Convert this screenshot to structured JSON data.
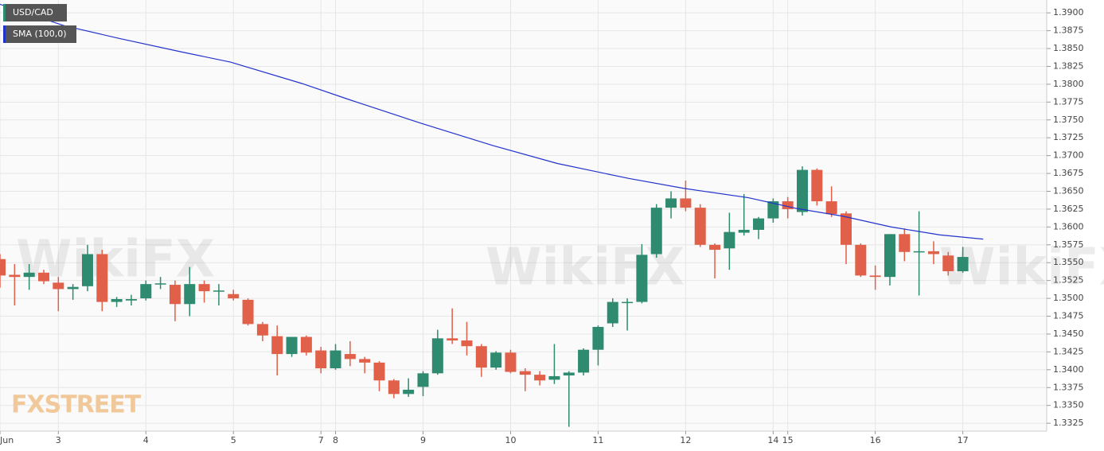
{
  "chart_data": {
    "type": "candlestick",
    "name": "USD/CAD",
    "up_color": "#2e8b6f",
    "down_color": "#e0604a",
    "grid": true,
    "watermark": "WikiFX",
    "logo": "FXSTREET",
    "xlim": [
      0,
      71.75
    ],
    "ylim": [
      1.3314,
      1.3918
    ],
    "xticks": [
      {
        "value": 0,
        "label": "Jun"
      },
      {
        "value": 4,
        "label": "3"
      },
      {
        "value": 10,
        "label": "4"
      },
      {
        "value": 16,
        "label": "5"
      },
      {
        "value": 22,
        "label": "7"
      },
      {
        "value": 23,
        "label": "8"
      },
      {
        "value": 29,
        "label": "9"
      },
      {
        "value": 35,
        "label": "10"
      },
      {
        "value": 41,
        "label": "11"
      },
      {
        "value": 47,
        "label": "12"
      },
      {
        "value": 53,
        "label": "14"
      },
      {
        "value": 54,
        "label": "15"
      },
      {
        "value": 60,
        "label": "16"
      },
      {
        "value": 66,
        "label": "17"
      }
    ],
    "yticks": [
      {
        "value": 1.3325,
        "label": "1.3325"
      },
      {
        "value": 1.335,
        "label": "1.3350"
      },
      {
        "value": 1.3375,
        "label": "1.3375"
      },
      {
        "value": 1.34,
        "label": "1.3400"
      },
      {
        "value": 1.3425,
        "label": "1.3425"
      },
      {
        "value": 1.345,
        "label": "1.3450"
      },
      {
        "value": 1.3475,
        "label": "1.3475"
      },
      {
        "value": 1.35,
        "label": "1.3500"
      },
      {
        "value": 1.3525,
        "label": "1.3525"
      },
      {
        "value": 1.355,
        "label": "1.3550"
      },
      {
        "value": 1.3575,
        "label": "1.3575"
      },
      {
        "value": 1.36,
        "label": "1.3600"
      },
      {
        "value": 1.3625,
        "label": "1.3625"
      },
      {
        "value": 1.365,
        "label": "1.3650"
      },
      {
        "value": 1.3675,
        "label": "1.3675"
      },
      {
        "value": 1.37,
        "label": "1.3700"
      },
      {
        "value": 1.3725,
        "label": "1.3725"
      },
      {
        "value": 1.375,
        "label": "1.3750"
      },
      {
        "value": 1.3775,
        "label": "1.3775"
      },
      {
        "value": 1.38,
        "label": "1.3800"
      },
      {
        "value": 1.3825,
        "label": "1.3825"
      },
      {
        "value": 1.385,
        "label": "1.3850"
      },
      {
        "value": 1.3875,
        "label": "1.3875"
      },
      {
        "value": 1.39,
        "label": "1.3900"
      }
    ],
    "x": [
      0,
      1,
      2,
      3,
      4,
      5,
      6,
      7,
      8,
      9,
      10,
      11,
      12,
      13,
      14,
      15,
      16,
      17,
      18,
      19,
      20,
      21,
      22,
      23,
      24,
      25,
      26,
      27,
      28,
      29,
      30,
      31,
      32,
      33,
      34,
      35,
      36,
      37,
      38,
      39,
      40,
      41,
      42,
      43,
      44,
      45,
      46,
      47,
      48,
      49,
      50,
      51,
      52,
      53,
      54,
      55,
      56,
      57,
      58,
      59,
      60,
      61,
      62,
      63,
      64,
      65,
      66
    ],
    "open": [
      1.3555,
      1.3533,
      1.353,
      1.3536,
      1.3522,
      1.3513,
      1.3517,
      1.3562,
      1.3495,
      1.3497,
      1.35,
      1.352,
      1.3519,
      1.3492,
      1.352,
      1.351,
      1.3506,
      1.3498,
      1.3464,
      1.3447,
      1.3422,
      1.3446,
      1.3427,
      1.3402,
      1.3422,
      1.3415,
      1.341,
      1.3385,
      1.3366,
      1.3376,
      1.3395,
      1.3444,
      1.3441,
      1.3433,
      1.3403,
      1.3424,
      1.3398,
      1.3393,
      1.3386,
      1.3392,
      1.3396,
      1.3428,
      1.3465,
      1.3494,
      1.3495,
      1.3562,
      1.3627,
      1.364,
      1.3627,
      1.3575,
      1.357,
      1.3592,
      1.3596,
      1.3612,
      1.3636,
      1.3621,
      1.368,
      1.3636,
      1.3619,
      1.3575,
      1.3532,
      1.353,
      1.359,
      1.3565,
      1.3566,
      1.356,
      1.3538
    ],
    "high": [
      1.3562,
      1.3548,
      1.3548,
      1.354,
      1.353,
      1.352,
      1.3575,
      1.3568,
      1.3502,
      1.3505,
      1.3525,
      1.353,
      1.3525,
      1.3544,
      1.3525,
      1.352,
      1.3512,
      1.35,
      1.3467,
      1.3462,
      1.3446,
      1.3448,
      1.3432,
      1.3436,
      1.344,
      1.3418,
      1.3412,
      1.3387,
      1.3388,
      1.3398,
      1.3456,
      1.3486,
      1.3467,
      1.3436,
      1.3426,
      1.3428,
      1.3402,
      1.3398,
      1.3436,
      1.3398,
      1.343,
      1.3462,
      1.35,
      1.35,
      1.3576,
      1.3632,
      1.365,
      1.3665,
      1.3632,
      1.3577,
      1.362,
      1.3646,
      1.3614,
      1.364,
      1.3642,
      1.3685,
      1.3682,
      1.3657,
      1.3622,
      1.3577,
      1.3546,
      1.359,
      1.3598,
      1.3622,
      1.358,
      1.3565,
      1.3572
    ],
    "low": [
      1.3515,
      1.349,
      1.3512,
      1.352,
      1.3482,
      1.3498,
      1.351,
      1.3482,
      1.3488,
      1.349,
      1.3497,
      1.3513,
      1.3468,
      1.3475,
      1.3494,
      1.349,
      1.3497,
      1.3462,
      1.344,
      1.3392,
      1.3418,
      1.342,
      1.3395,
      1.34,
      1.3405,
      1.3395,
      1.337,
      1.336,
      1.3362,
      1.3363,
      1.3393,
      1.3436,
      1.342,
      1.339,
      1.34,
      1.3395,
      1.337,
      1.3378,
      1.338,
      1.332,
      1.3392,
      1.3406,
      1.346,
      1.3455,
      1.3493,
      1.3557,
      1.3612,
      1.3622,
      1.3572,
      1.3528,
      1.354,
      1.3588,
      1.3583,
      1.3606,
      1.3612,
      1.3616,
      1.363,
      1.3614,
      1.3548,
      1.353,
      1.3512,
      1.3518,
      1.3552,
      1.3504,
      1.3548,
      1.3532,
      1.3536
    ],
    "close": [
      1.3532,
      1.353,
      1.3536,
      1.3524,
      1.3513,
      1.3516,
      1.3562,
      1.3495,
      1.3499,
      1.3499,
      1.352,
      1.3521,
      1.3492,
      1.352,
      1.351,
      1.3511,
      1.35,
      1.3464,
      1.3448,
      1.3422,
      1.3446,
      1.3424,
      1.3402,
      1.3427,
      1.3415,
      1.341,
      1.3385,
      1.3366,
      1.3372,
      1.3395,
      1.3444,
      1.3441,
      1.3433,
      1.3403,
      1.3424,
      1.3397,
      1.3393,
      1.3385,
      1.3391,
      1.3396,
      1.3428,
      1.346,
      1.3495,
      1.3495,
      1.3561,
      1.3627,
      1.364,
      1.3627,
      1.3575,
      1.3568,
      1.3593,
      1.3596,
      1.3612,
      1.3636,
      1.3625,
      1.368,
      1.3636,
      1.3618,
      1.3575,
      1.3532,
      1.353,
      1.359,
      1.3565,
      1.3566,
      1.3562,
      1.3538,
      1.3558
    ],
    "sma": {
      "name": "SMA (100,0)",
      "color": "#2233cc",
      "x": [
        0,
        4.4,
        8.2,
        12.5,
        15.8,
        20.7,
        24,
        28.9,
        33.8,
        38.2,
        43.1,
        46.9,
        51.3,
        54.6,
        57.8,
        61.1,
        64.4,
        67.4
      ],
      "values": [
        1.3912,
        1.3882,
        1.3864,
        1.3845,
        1.3831,
        1.3801,
        1.3778,
        1.3745,
        1.3714,
        1.3689,
        1.3668,
        1.3654,
        1.3641,
        1.3626,
        1.3615,
        1.36,
        1.3589,
        1.3583
      ]
    }
  }
}
